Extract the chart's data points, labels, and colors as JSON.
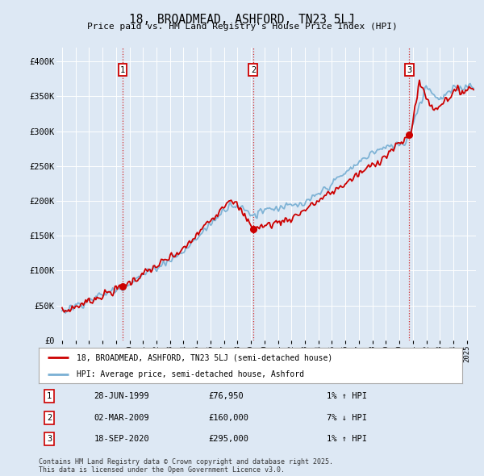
{
  "title": "18, BROADMEAD, ASHFORD, TN23 5LJ",
  "subtitle": "Price paid vs. HM Land Registry's House Price Index (HPI)",
  "bg_color": "#dde8f4",
  "plot_bg_color": "#dde8f4",
  "grid_color": "#ffffff",
  "sale_dates_num": [
    1999.49,
    2009.17,
    2020.72
  ],
  "sale_prices": [
    76950,
    160000,
    295000
  ],
  "sale_labels": [
    "1",
    "2",
    "3"
  ],
  "vline_color": "#cc0000",
  "hpi_color": "#7ab0d4",
  "price_color": "#cc0000",
  "legend_label_price": "18, BROADMEAD, ASHFORD, TN23 5LJ (semi-detached house)",
  "legend_label_hpi": "HPI: Average price, semi-detached house, Ashford",
  "table_rows": [
    [
      "1",
      "28-JUN-1999",
      "£76,950",
      "1% ↑ HPI"
    ],
    [
      "2",
      "02-MAR-2009",
      "£160,000",
      "7% ↓ HPI"
    ],
    [
      "3",
      "18-SEP-2020",
      "£295,000",
      "1% ↑ HPI"
    ]
  ],
  "footer": "Contains HM Land Registry data © Crown copyright and database right 2025.\nThis data is licensed under the Open Government Licence v3.0.",
  "ylim": [
    0,
    420000
  ],
  "xlim_start": 1994.6,
  "xlim_end": 2025.7,
  "yticks": [
    0,
    50000,
    100000,
    150000,
    200000,
    250000,
    300000,
    350000,
    400000
  ],
  "ytick_labels": [
    "£0",
    "£50K",
    "£100K",
    "£150K",
    "£200K",
    "£250K",
    "£300K",
    "£350K",
    "£400K"
  ],
  "xtick_years": [
    1995,
    1996,
    1997,
    1998,
    1999,
    2000,
    2001,
    2002,
    2003,
    2004,
    2005,
    2006,
    2007,
    2008,
    2009,
    2010,
    2011,
    2012,
    2013,
    2014,
    2015,
    2016,
    2017,
    2018,
    2019,
    2020,
    2021,
    2022,
    2023,
    2024,
    2025
  ]
}
